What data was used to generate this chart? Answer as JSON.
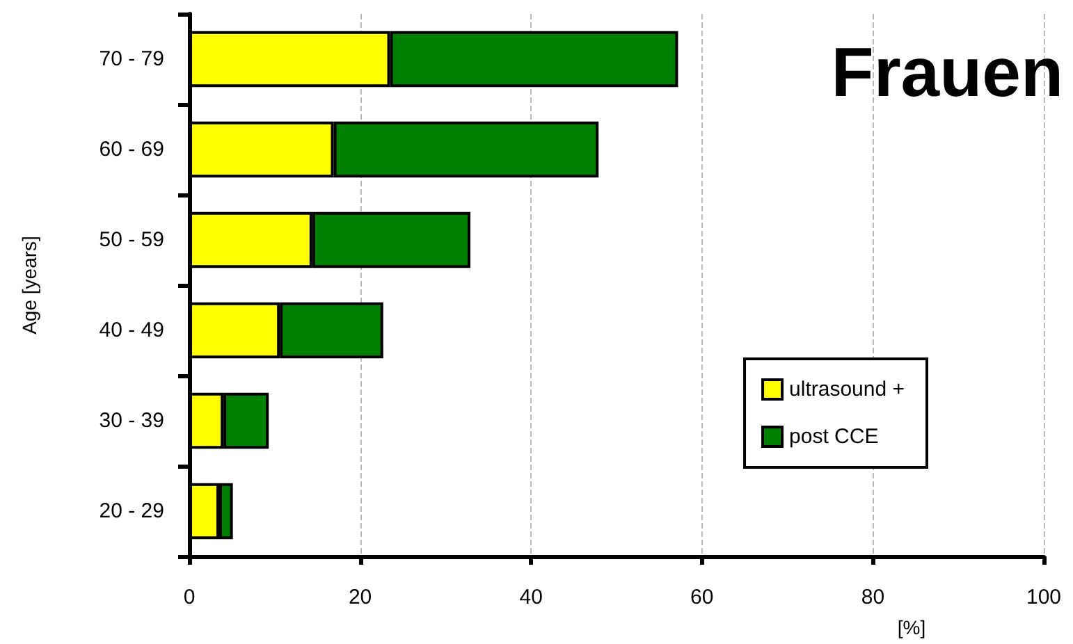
{
  "chart_data": {
    "type": "bar",
    "orientation": "horizontal",
    "stacked": true,
    "title": "Frauen",
    "xlabel": "[%]",
    "ylabel": "Age [years]",
    "categories": [
      "70 - 79",
      "60 - 69",
      "50 - 59",
      "40 - 49",
      "30 - 39",
      "20 - 29"
    ],
    "series": [
      {
        "name": "ultrasound +",
        "color": "#ffff00",
        "values": [
          23.5,
          16.9,
          14.4,
          10.6,
          4.0,
          3.5
        ]
      },
      {
        "name": "post CCE",
        "color": "#008000",
        "values": [
          33.7,
          31.0,
          18.5,
          12.1,
          5.3,
          1.6
        ]
      }
    ],
    "xlim": [
      0,
      100
    ],
    "xticks": [
      0,
      20,
      40,
      60,
      80,
      100
    ],
    "grid": "x",
    "legend": "right"
  }
}
